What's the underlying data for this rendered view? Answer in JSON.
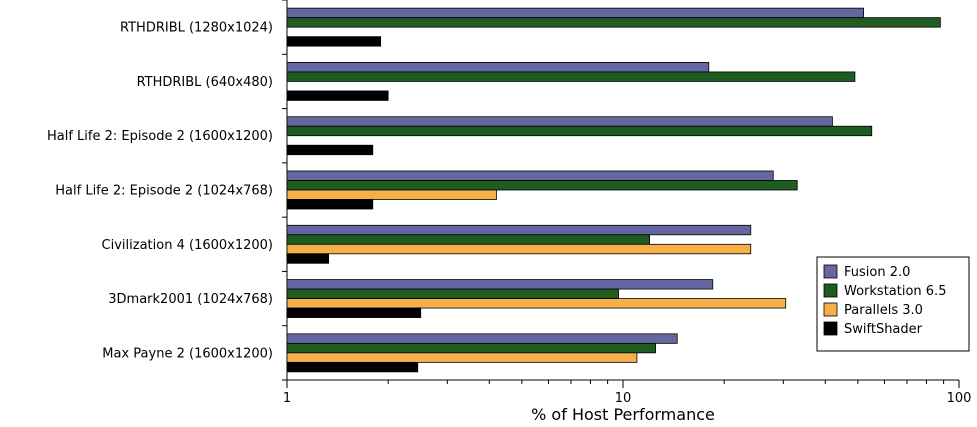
{
  "chart_data": {
    "type": "bar",
    "orientation": "horizontal",
    "x_scale": "log",
    "xlim": [
      1,
      100
    ],
    "xlabel": "% of Host Performance",
    "ylabel": "",
    "title": "",
    "x_ticks": [
      "1",
      "10",
      "100"
    ],
    "grid": false,
    "legend_position": "right",
    "categories": [
      "RTHDRIBL (1280x1024)",
      "RTHDRIBL (640x480)",
      "Half Life 2: Episode 2 (1600x1200)",
      "Half Life 2: Episode 2 (1024x768)",
      "Civilization 4 (1600x1200)",
      "3Dmark2001 (1024x768)",
      "Max Payne 2 (1600x1200)"
    ],
    "series": [
      {
        "name": "Fusion 2.0",
        "color": "#6666a0",
        "values": [
          52,
          18,
          42,
          28,
          24,
          18.5,
          14.5
        ]
      },
      {
        "name": "Workstation 6.5",
        "color": "#1f5c1f",
        "values": [
          88,
          49,
          55,
          33,
          12,
          9.7,
          12.5
        ]
      },
      {
        "name": "Parallels 3.0",
        "color": "#f5b049",
        "values": [
          null,
          null,
          null,
          4.2,
          24,
          30.5,
          11
        ]
      },
      {
        "name": "SwiftShader",
        "color": "#000000",
        "values": [
          1.9,
          2.0,
          1.8,
          1.8,
          1.33,
          2.5,
          2.45
        ]
      }
    ]
  }
}
